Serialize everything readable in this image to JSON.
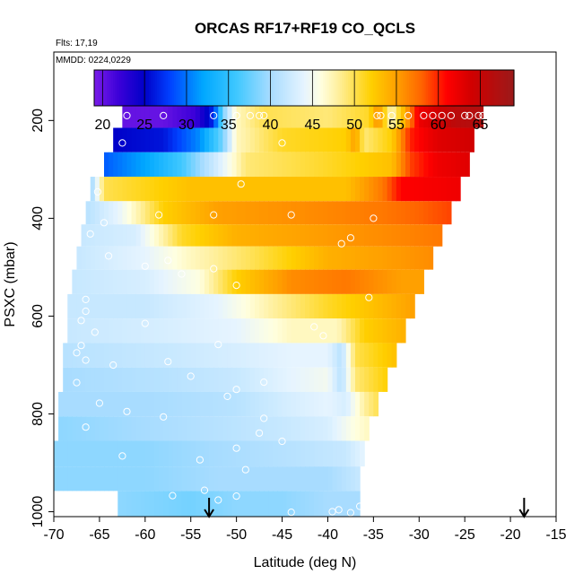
{
  "chart_data": {
    "type": "heatmap",
    "title": "ORCAS RF17+RF19 CO_QCLS",
    "note_flights": "Flts: 17,19",
    "note_dates": "MMDD: 0224,0229",
    "xlabel": "Latitude (deg N)",
    "ylabel": "PSXC (mbar)",
    "xlim": [
      -70,
      -15
    ],
    "ylim": [
      1010,
      60
    ],
    "y_reversed": true,
    "grid": false,
    "xticks": [
      -70,
      -65,
      -60,
      -55,
      -50,
      -45,
      -40,
      -35,
      -30,
      -25,
      -20,
      -15
    ],
    "yticks": [
      200,
      400,
      600,
      800,
      1000
    ],
    "colorbar": {
      "placement": "top",
      "range": [
        19,
        69
      ],
      "ticks": [
        20,
        25,
        30,
        35,
        40,
        45,
        50,
        55,
        60,
        65
      ],
      "stops": [
        {
          "value": 19,
          "color": "#7a1ce8"
        },
        {
          "value": 22,
          "color": "#3a00d8"
        },
        {
          "value": 25,
          "color": "#0000c8"
        },
        {
          "value": 28,
          "color": "#0040ff"
        },
        {
          "value": 32,
          "color": "#00a8ff"
        },
        {
          "value": 36,
          "color": "#40c8ff"
        },
        {
          "value": 40,
          "color": "#a8dcff"
        },
        {
          "value": 44,
          "color": "#e6f4ff"
        },
        {
          "value": 46,
          "color": "#ffffe0"
        },
        {
          "value": 48,
          "color": "#fff0a0"
        },
        {
          "value": 52,
          "color": "#ffd000"
        },
        {
          "value": 55,
          "color": "#ffa000"
        },
        {
          "value": 58,
          "color": "#ff6400"
        },
        {
          "value": 61,
          "color": "#ff0000"
        },
        {
          "value": 64,
          "color": "#d00000"
        },
        {
          "value": 69,
          "color": "#9b1a1a"
        }
      ]
    },
    "arrows_latitude": [
      -53,
      -18.5
    ],
    "rows": [
      {
        "p": 190,
        "lat_start": -62.5,
        "lat_end": -23,
        "nodes": [
          [
            -62.5,
            20
          ],
          [
            -58,
            20
          ],
          [
            -54.5,
            22
          ],
          [
            -52.5,
            27
          ],
          [
            -51.5,
            38
          ],
          [
            -50,
            47
          ],
          [
            -47,
            50
          ],
          [
            -40,
            49
          ],
          [
            -35.5,
            51
          ],
          [
            -34.5,
            56
          ],
          [
            -33,
            47
          ],
          [
            -30,
            62
          ],
          [
            -26,
            66
          ],
          [
            -23,
            67
          ]
        ]
      },
      {
        "p": 240,
        "lat_start": -63.5,
        "lat_end": -24,
        "nodes": [
          [
            -63.5,
            25
          ],
          [
            -58,
            26
          ],
          [
            -54,
            31
          ],
          [
            -51.5,
            38
          ],
          [
            -50,
            47
          ],
          [
            -45,
            51
          ],
          [
            -38,
            52
          ],
          [
            -37,
            55
          ],
          [
            -36,
            49
          ],
          [
            -33,
            52
          ],
          [
            -31,
            60
          ],
          [
            -28,
            63
          ],
          [
            -24,
            64
          ]
        ]
      },
      {
        "p": 290,
        "lat_start": -64.5,
        "lat_end": -24.5,
        "nodes": [
          [
            -64.5,
            29
          ],
          [
            -60,
            32
          ],
          [
            -56,
            36
          ],
          [
            -52,
            43
          ],
          [
            -49,
            49
          ],
          [
            -40,
            51
          ],
          [
            -33,
            53
          ],
          [
            -31,
            59
          ],
          [
            -28,
            62
          ],
          [
            -24.5,
            63
          ]
        ]
      },
      {
        "p": 340,
        "lat_start": -66,
        "lat_end": -25.5,
        "nodes": [
          [
            -66,
            39
          ],
          [
            -64.5,
            50
          ],
          [
            -55,
            53
          ],
          [
            -45,
            53
          ],
          [
            -38,
            53
          ],
          [
            -34,
            57
          ],
          [
            -32,
            61
          ],
          [
            -25.5,
            62
          ]
        ]
      },
      {
        "p": 390,
        "lat_start": -66.5,
        "lat_end": -26.5,
        "nodes": [
          [
            -66.5,
            41
          ],
          [
            -63,
            44
          ],
          [
            -58,
            52
          ],
          [
            -52,
            55
          ],
          [
            -42,
            56
          ],
          [
            -34,
            57
          ],
          [
            -30,
            58
          ],
          [
            -26.5,
            59
          ]
        ]
      },
      {
        "p": 435,
        "lat_start": -67,
        "lat_end": -27.5,
        "nodes": [
          [
            -67,
            42
          ],
          [
            -61,
            43
          ],
          [
            -56,
            51
          ],
          [
            -50,
            54
          ],
          [
            -42,
            55
          ],
          [
            -34,
            56
          ],
          [
            -27.5,
            57
          ]
        ]
      },
      {
        "p": 480,
        "lat_start": -67.5,
        "lat_end": -28.5,
        "nodes": [
          [
            -67.5,
            42
          ],
          [
            -60,
            44
          ],
          [
            -55,
            47
          ],
          [
            -48,
            50
          ],
          [
            -40,
            54
          ],
          [
            -34,
            55
          ],
          [
            -28.5,
            56
          ]
        ]
      },
      {
        "p": 530,
        "lat_start": -68,
        "lat_end": -29.5,
        "nodes": [
          [
            -68,
            42
          ],
          [
            -60,
            43
          ],
          [
            -54,
            46
          ],
          [
            -50,
            52
          ],
          [
            -44,
            56
          ],
          [
            -38,
            57
          ],
          [
            -32,
            55
          ],
          [
            -29.5,
            55
          ]
        ]
      },
      {
        "p": 580,
        "lat_start": -68.5,
        "lat_end": -30.5,
        "nodes": [
          [
            -68.5,
            42
          ],
          [
            -60,
            42
          ],
          [
            -52,
            44
          ],
          [
            -46,
            48
          ],
          [
            -40,
            51
          ],
          [
            -35,
            53
          ],
          [
            -30.5,
            55
          ]
        ]
      },
      {
        "p": 630,
        "lat_start": -68.5,
        "lat_end": -31.5,
        "nodes": [
          [
            -68.5,
            42
          ],
          [
            -58,
            43
          ],
          [
            -50,
            44
          ],
          [
            -44,
            47
          ],
          [
            -39,
            47
          ],
          [
            -36,
            52
          ],
          [
            -31.5,
            54
          ]
        ]
      },
      {
        "p": 680,
        "lat_start": -69,
        "lat_end": -32.5,
        "nodes": [
          [
            -69,
            41
          ],
          [
            -58,
            42
          ],
          [
            -50,
            43
          ],
          [
            -44,
            44
          ],
          [
            -40,
            44
          ],
          [
            -38.5,
            41
          ],
          [
            -37,
            50
          ],
          [
            -32.5,
            53
          ]
        ]
      },
      {
        "p": 730,
        "lat_start": -69,
        "lat_end": -33.5,
        "nodes": [
          [
            -69,
            40
          ],
          [
            -58,
            41
          ],
          [
            -50,
            42
          ],
          [
            -44,
            44
          ],
          [
            -40,
            45
          ],
          [
            -38.5,
            41
          ],
          [
            -37,
            49
          ],
          [
            -33.5,
            52
          ]
        ]
      },
      {
        "p": 780,
        "lat_start": -69.5,
        "lat_end": -34.5,
        "nodes": [
          [
            -69.5,
            40
          ],
          [
            -60,
            40
          ],
          [
            -50,
            41
          ],
          [
            -44,
            43
          ],
          [
            -40,
            44
          ],
          [
            -38,
            43
          ],
          [
            -36,
            48
          ],
          [
            -34.5,
            50
          ]
        ]
      },
      {
        "p": 830,
        "lat_start": -69.5,
        "lat_end": -35.5,
        "nodes": [
          [
            -69.5,
            39
          ],
          [
            -60,
            40
          ],
          [
            -52,
            41
          ],
          [
            -45,
            42
          ],
          [
            -40,
            43
          ],
          [
            -37,
            46
          ],
          [
            -35.5,
            47
          ]
        ]
      },
      {
        "p": 880,
        "lat_start": -70,
        "lat_end": -36,
        "nodes": [
          [
            -70,
            39
          ],
          [
            -60,
            39
          ],
          [
            -52,
            40
          ],
          [
            -44,
            41
          ],
          [
            -38,
            42
          ],
          [
            -36,
            44
          ]
        ]
      },
      {
        "p": 935,
        "lat_start": -70,
        "lat_end": -36.5,
        "nodes": [
          [
            -70,
            39
          ],
          [
            -60,
            39
          ],
          [
            -52,
            40
          ],
          [
            -45,
            40
          ],
          [
            -40,
            40
          ],
          [
            -36.5,
            42
          ]
        ]
      },
      {
        "p": 980,
        "lat_start": -63,
        "lat_end": -36.5,
        "nodes": [
          [
            -63,
            39
          ],
          [
            -55,
            38
          ],
          [
            -50,
            39
          ],
          [
            -45,
            39
          ],
          [
            -40,
            40
          ],
          [
            -36.5,
            40
          ]
        ]
      }
    ],
    "points": [
      [
        -62,
        190
      ],
      [
        -58,
        190
      ],
      [
        -52.5,
        190
      ],
      [
        -50,
        190
      ],
      [
        -48.5,
        190
      ],
      [
        -47.5,
        190
      ],
      [
        -47,
        190
      ],
      [
        -34.6,
        190
      ],
      [
        -34.2,
        190
      ],
      [
        -33,
        190
      ],
      [
        -31.2,
        190
      ],
      [
        -29.5,
        190
      ],
      [
        -28.5,
        190
      ],
      [
        -27.5,
        190
      ],
      [
        -26.5,
        190
      ],
      [
        -25,
        190
      ],
      [
        -24.5,
        190
      ],
      [
        -23.5,
        190
      ],
      [
        -23,
        190
      ],
      [
        -62.5,
        246
      ],
      [
        -45,
        246
      ],
      [
        -65.2,
        346
      ],
      [
        -49.5,
        330
      ],
      [
        -58.5,
        393
      ],
      [
        -52.5,
        393
      ],
      [
        -44,
        393
      ],
      [
        -64.5,
        409
      ],
      [
        -66,
        432
      ],
      [
        -35,
        400
      ],
      [
        -38.5,
        452
      ],
      [
        -37.5,
        440
      ],
      [
        -64,
        477
      ],
      [
        -60,
        498
      ],
      [
        -57.5,
        486
      ],
      [
        -52.5,
        503
      ],
      [
        -56,
        514
      ],
      [
        -50,
        537
      ],
      [
        -35.5,
        562
      ],
      [
        -66.5,
        566
      ],
      [
        -66.5,
        590
      ],
      [
        -67,
        609
      ],
      [
        -60,
        615
      ],
      [
        -65.5,
        633
      ],
      [
        -41.5,
        622
      ],
      [
        -67,
        660
      ],
      [
        -67.5,
        675
      ],
      [
        -66.5,
        690
      ],
      [
        -52,
        658
      ],
      [
        -57.5,
        693
      ],
      [
        -40.5,
        640
      ],
      [
        -67.5,
        736
      ],
      [
        -65,
        778
      ],
      [
        -63.5,
        700
      ],
      [
        -55,
        723
      ],
      [
        -50,
        750
      ],
      [
        -47,
        735
      ],
      [
        -51,
        764
      ],
      [
        -58,
        806
      ],
      [
        -62,
        795
      ],
      [
        -47,
        809
      ],
      [
        -66.5,
        827
      ],
      [
        -62.5,
        886
      ],
      [
        -47.5,
        839
      ],
      [
        -50,
        870
      ],
      [
        -45,
        856
      ],
      [
        -54,
        894
      ],
      [
        -49,
        914
      ],
      [
        -57,
        967
      ],
      [
        -53.5,
        956
      ],
      [
        -50,
        968
      ],
      [
        -52,
        976
      ],
      [
        -38.8,
        996
      ],
      [
        -39.5,
        1000
      ],
      [
        -44,
        1001
      ],
      [
        -37.5,
        1002
      ],
      [
        -36.5,
        989
      ]
    ]
  }
}
